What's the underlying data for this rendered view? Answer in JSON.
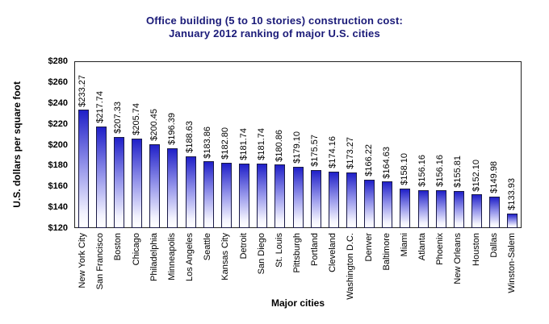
{
  "title": {
    "line1": "Office building (5 to 10 stories) construction cost:",
    "line2": "January 2012 ranking of major U.S. cities"
  },
  "axes": {
    "y_title": "U.S. dollars per square foot",
    "x_title": "Major cities"
  },
  "chart_data": {
    "type": "bar",
    "title": "Office building (5 to 10 stories) construction cost: January 2012 ranking of major U.S. cities",
    "xlabel": "Major cities",
    "ylabel": "U.S. dollars per square foot",
    "ylim": [
      120,
      280
    ],
    "ytick_step": 20,
    "ytick_labels": [
      "$120",
      "$140",
      "$160",
      "$180",
      "$200",
      "$220",
      "$240",
      "$260",
      "$280"
    ],
    "grid": false,
    "legend": "none",
    "categories": [
      "New York City",
      "San Francisco",
      "Boston",
      "Chicago",
      "Philadelphia",
      "Minneapolis",
      "Los Angeles",
      "Seattle",
      "Kansas City",
      "Detroit",
      "San Diego",
      "St. Louis",
      "Pittsburgh",
      "Portland",
      "Cleveland",
      "Washington D.C.",
      "Denver",
      "Baltimore",
      "Miami",
      "Atlanta",
      "Phoenix",
      "New Orleans",
      "Houston",
      "Dallas",
      "Winston-Salem"
    ],
    "values": [
      233.27,
      217.74,
      207.33,
      205.74,
      200.45,
      196.39,
      188.63,
      183.86,
      182.8,
      181.74,
      181.74,
      180.86,
      179.1,
      175.57,
      174.16,
      173.27,
      166.22,
      164.63,
      158.1,
      156.16,
      156.16,
      155.81,
      152.1,
      149.98,
      133.93
    ],
    "value_labels": [
      "$233.27",
      "$217.74",
      "$207.33",
      "$205.74",
      "$200.45",
      "$196.39",
      "$188.63",
      "$183.86",
      "$182.80",
      "$181.74",
      "$181.74",
      "$180.86",
      "$179.10",
      "$175.57",
      "$174.16",
      "$173.27",
      "$166.22",
      "$164.63",
      "$158.10",
      "$156.16",
      "$156.16",
      "$155.81",
      "$152.10",
      "$149.98",
      "$133.93"
    ]
  },
  "colors": {
    "title": "#1a1a78",
    "text": "#000000",
    "background": "#ffffff",
    "frame": "#222222",
    "bar_top": "#2020c8",
    "bar_mid": "#9a9aec",
    "bar_low": "#f2f2fe",
    "bar_bottom": "#ffffff",
    "bar_border": "#1a1a46"
  }
}
